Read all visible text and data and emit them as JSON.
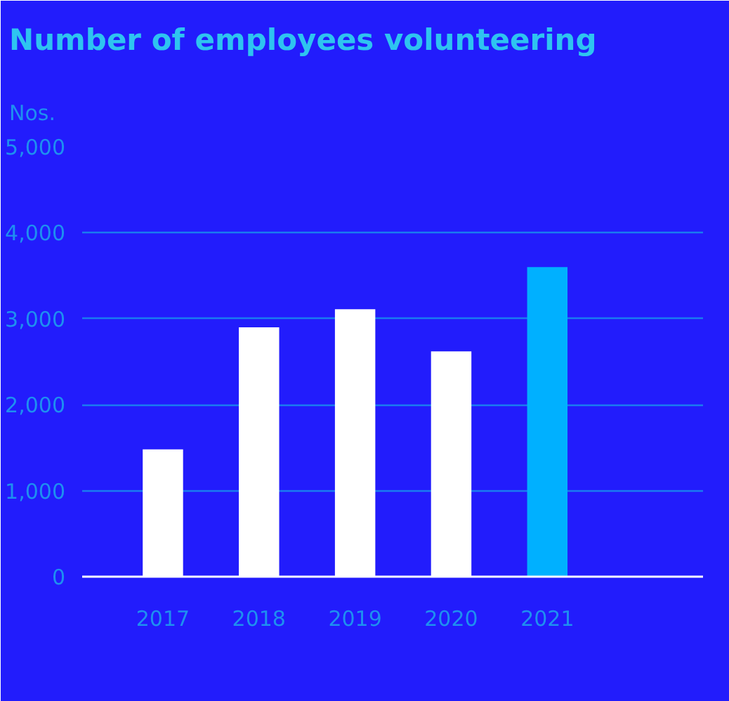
{
  "chart_data": {
    "type": "bar",
    "title": "Number of employees volunteering",
    "ylabel": "Nos.",
    "categories": [
      "2017",
      "2018",
      "2019",
      "2020",
      "2021"
    ],
    "values": [
      1480,
      2900,
      3110,
      2620,
      3600
    ],
    "colors": [
      "#ffffff",
      "#ffffff",
      "#ffffff",
      "#ffffff",
      "#00b0ff"
    ],
    "ylim": [
      0,
      5000
    ],
    "yticks": [
      {
        "value": 0,
        "label": "0"
      },
      {
        "value": 1000,
        "label": "1,000"
      },
      {
        "value": 2000,
        "label": "2,000"
      },
      {
        "value": 3000,
        "label": "3,000"
      },
      {
        "value": 4000,
        "label": "4,000"
      },
      {
        "value": 5000,
        "label": "5,000"
      }
    ],
    "grid": "y"
  }
}
